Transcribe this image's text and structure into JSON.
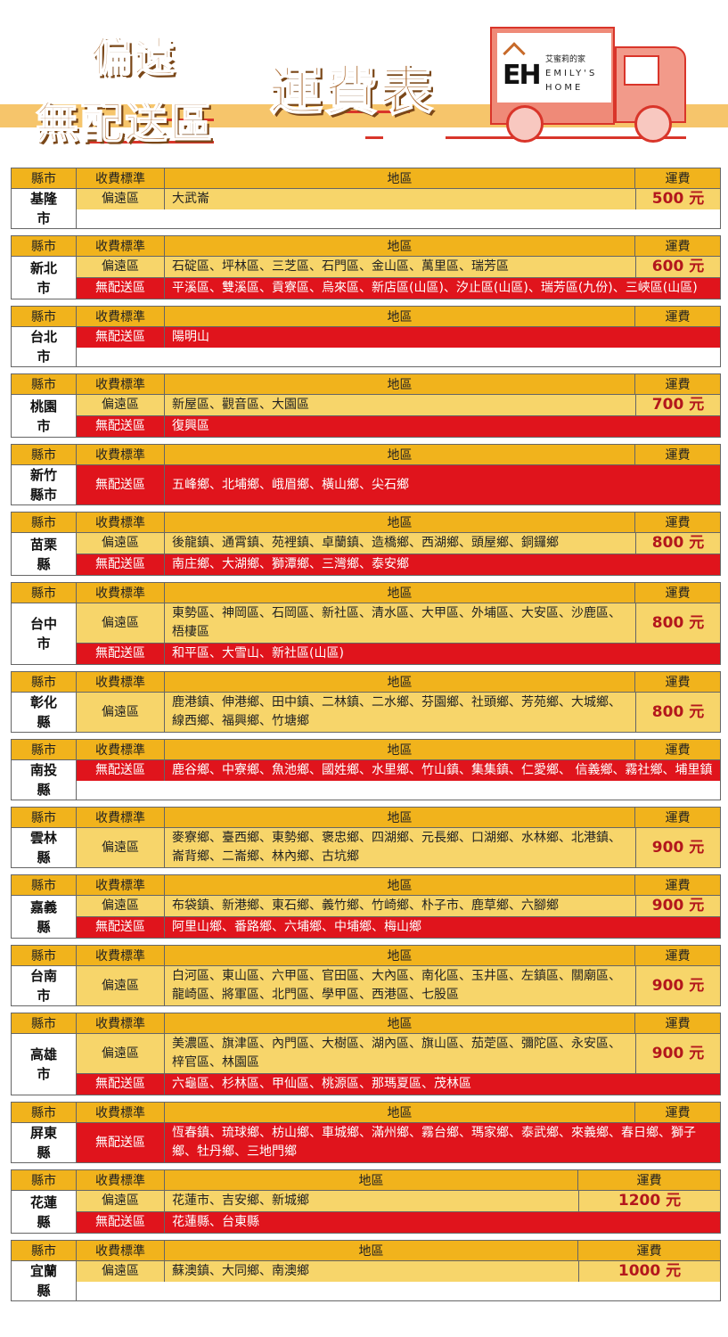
{
  "banner": {
    "title_line1": "偏遠",
    "title_line2": "無配送區",
    "title_main": "運費表",
    "logo": {
      "mark": "EH",
      "name_zh": "艾蜜莉的家",
      "name_en_1": "EMILY'S",
      "name_en_2": "HOME"
    }
  },
  "colors": {
    "header": "#f1b31c",
    "remote": "#f7d56a",
    "no_delivery": "#e0141c",
    "fee_text": "#b3171c"
  },
  "headers": {
    "city": "縣市",
    "standard": "收費標準",
    "area": "地區",
    "fee": "運費"
  },
  "blocks": [
    {
      "city": "基隆市",
      "rows": [
        {
          "type": "remote",
          "standard": "偏遠區",
          "areas": "大武崙",
          "fee": "500 元"
        }
      ]
    },
    {
      "city": "新北市",
      "rows": [
        {
          "type": "remote",
          "standard": "偏遠區",
          "areas": "石碇區、坪林區、三芝區、石門區、金山區、萬里區、瑞芳區",
          "fee": "600 元"
        },
        {
          "type": "nodeliv",
          "standard": "無配送區",
          "areas": "平溪區、雙溪區、貢寮區、烏來區、新店區(山區)、汐止區(山區)、瑞芳區(九份)、三峽區(山區)"
        }
      ]
    },
    {
      "city": "台北市",
      "rows": [
        {
          "type": "nodeliv",
          "standard": "無配送區",
          "areas": "陽明山"
        }
      ]
    },
    {
      "city": "桃園市",
      "rows": [
        {
          "type": "remote",
          "standard": "偏遠區",
          "areas": "新屋區、觀音區、大園區",
          "fee": "700 元"
        },
        {
          "type": "nodeliv",
          "standard": "無配送區",
          "areas": "復興區"
        }
      ]
    },
    {
      "city": "新竹縣市",
      "rows": [
        {
          "type": "nodeliv",
          "standard": "無配送區",
          "areas": "五峰鄉、北埔鄉、峨眉鄉、橫山鄉、尖石鄉",
          "tall": true
        }
      ]
    },
    {
      "city": "苗栗縣",
      "rows": [
        {
          "type": "remote",
          "standard": "偏遠區",
          "areas": "後龍鎮、通霄鎮、苑裡鎮、卓蘭鎮、造橋鄉、西湖鄉、頭屋鄉、銅鑼鄉",
          "fee": "800 元"
        },
        {
          "type": "nodeliv",
          "standard": "無配送區",
          "areas": "南庄鄉、大湖鄉、獅潭鄉、三灣鄉、泰安鄉"
        }
      ]
    },
    {
      "city": "台中市",
      "rows": [
        {
          "type": "remote",
          "standard": "偏遠區",
          "areas": "東勢區、神岡區、石岡區、新社區、清水區、大甲區、外埔區、大安區、沙鹿區、梧棲區",
          "fee": "800 元"
        },
        {
          "type": "nodeliv",
          "standard": "無配送區",
          "areas": "和平區、大雪山、新社區(山區)"
        }
      ]
    },
    {
      "city": "彰化縣",
      "rows": [
        {
          "type": "remote",
          "standard": "偏遠區",
          "areas": "鹿港鎮、伸港鄉、田中鎮、二林鎮、二水鄉、芬園鄉、社頭鄉、芳苑鄉、大城鄉、線西鄉、福興鄉、竹塘鄉",
          "fee": "800 元"
        }
      ]
    },
    {
      "city": "南投縣",
      "rows": [
        {
          "type": "nodeliv",
          "standard": "無配送區",
          "areas": "鹿谷鄉、中寮鄉、魚池鄉、國姓鄉、水里鄉、竹山鎮、集集鎮、仁愛鄉、 信義鄉、霧社鄉、埔里鎮"
        }
      ]
    },
    {
      "city": "雲林縣",
      "rows": [
        {
          "type": "remote",
          "standard": "偏遠區",
          "areas": "麥寮鄉、臺西鄉、東勢鄉、褒忠鄉、四湖鄉、元長鄉、口湖鄉、水林鄉、北港鎮、崙背鄉、二崙鄉、林內鄉、古坑鄉",
          "fee": "900 元"
        }
      ]
    },
    {
      "city": "嘉義縣",
      "rows": [
        {
          "type": "remote",
          "standard": "偏遠區",
          "areas": "布袋鎮、新港鄉、東石鄉、義竹鄉、竹崎鄉、朴子市、鹿草鄉、六腳鄉",
          "fee": "900 元"
        },
        {
          "type": "nodeliv",
          "standard": "無配送區",
          "areas": "阿里山鄉、番路鄉、六埔鄉、中埔鄉、梅山鄉"
        }
      ]
    },
    {
      "city": "台南市",
      "rows": [
        {
          "type": "remote",
          "standard": "偏遠區",
          "areas": "白河區、東山區、六甲區、官田區、大內區、南化區、玉井區、左鎮區、關廟區、龍崎區、將軍區、北門區、學甲區、西港區、七股區",
          "fee": "900 元"
        }
      ]
    },
    {
      "city": "高雄市",
      "rows": [
        {
          "type": "remote",
          "standard": "偏遠區",
          "areas": "美濃區、旗津區、內門區、大樹區、湖內區、旗山區、茄萣區、彌陀區、永安區、梓官區、林園區",
          "fee": "900 元"
        },
        {
          "type": "nodeliv",
          "standard": "無配送區",
          "areas": "六龜區、杉林區、甲仙區、桃源區、那瑪夏區、茂林區"
        }
      ]
    },
    {
      "city": "屏東縣",
      "rows": [
        {
          "type": "nodeliv",
          "standard": "無配送區",
          "areas": "恆春鎮、琉球鄉、枋山鄉、車城鄉、滿州鄉、霧台鄉、瑪家鄉、泰武鄉、來義鄉、春日鄉、獅子鄉、牡丹鄉、三地門鄉"
        }
      ]
    },
    {
      "city": "花蓮縣",
      "wide": true,
      "rows": [
        {
          "type": "remote",
          "standard": "偏遠區",
          "areas": "花蓮市、吉安鄉、新城鄉",
          "fee": "1200 元"
        },
        {
          "type": "nodeliv",
          "standard": "無配送區",
          "areas": "花蓮縣、台東縣"
        }
      ]
    },
    {
      "city": "宜蘭縣",
      "wide": true,
      "rows": [
        {
          "type": "remote",
          "standard": "偏遠區",
          "areas": "蘇澳鎮、大同鄉、南澳鄉",
          "fee": "1000 元"
        }
      ]
    }
  ]
}
